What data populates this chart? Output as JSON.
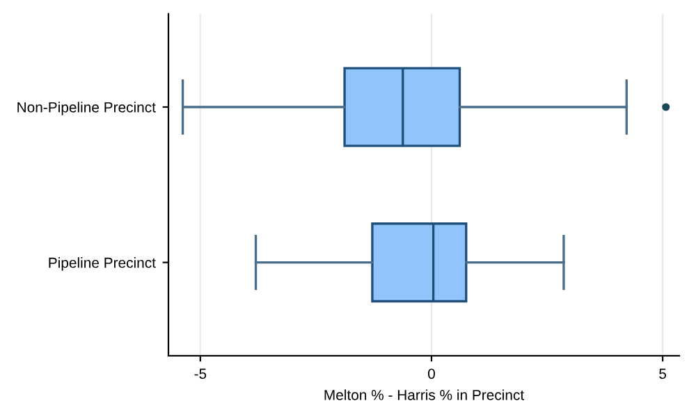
{
  "chart_data": {
    "type": "box",
    "orientation": "horizontal",
    "xlabel": "Melton % - Harris % in Precinct",
    "categories": [
      "Non-Pipeline Precinct",
      "Pipeline Precinct"
    ],
    "boxes": [
      {
        "low": -5.38,
        "q1": -1.88,
        "median": -0.62,
        "q3": 0.61,
        "high": 4.22,
        "outliers": [
          5.07
        ]
      },
      {
        "low": -3.8,
        "q1": -1.28,
        "median": 0.04,
        "q3": 0.75,
        "high": 2.86
      }
    ],
    "color": "#90c4fa",
    "xlim": [
      -5.69,
      5.36
    ],
    "xticks": [
      -5,
      0,
      5
    ],
    "grid": "x"
  }
}
